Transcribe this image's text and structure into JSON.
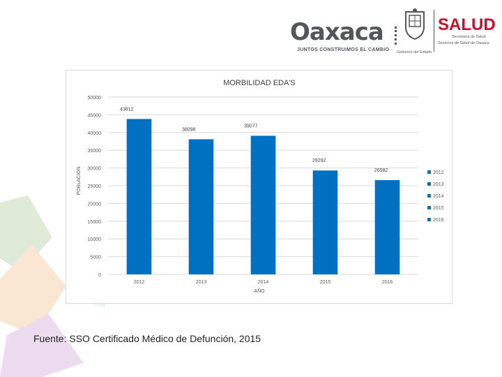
{
  "header": {
    "brand_word": "Oaxaca",
    "brand_tagline": "JUNTOS CONSTRUIMOS EL CAMBIO",
    "government_label": "Gobierno del Estado",
    "salud_word": "SALUD",
    "salud_line1": "Secretaría de Salud",
    "salud_line2": "Servicios de Salud de Oaxaca",
    "salud_color": "#c8102e"
  },
  "source_note": "Fuente: SSO Certificado Médico de Defunción, 2015",
  "chart_data": {
    "type": "bar",
    "title": "MORBILIDAD EDA'S",
    "xlabel": "AÑO",
    "ylabel": "POBLACION",
    "categories": [
      "2012",
      "2013",
      "2014",
      "2015",
      "2016"
    ],
    "series": [
      {
        "values": [
          43812,
          38098,
          39077,
          29292,
          26582
        ],
        "color": "#0070c0"
      }
    ],
    "data_labels": [
      "43812",
      "38098",
      "39077",
      "29292",
      "26582"
    ],
    "ylim": [
      0,
      50000
    ],
    "yticks": [
      0,
      5000,
      10000,
      15000,
      20000,
      25000,
      30000,
      35000,
      40000,
      45000,
      50000
    ],
    "grid": true,
    "legend": {
      "position": "right",
      "entries": [
        "2012",
        "2013",
        "2014",
        "2015",
        "2016"
      ]
    }
  }
}
